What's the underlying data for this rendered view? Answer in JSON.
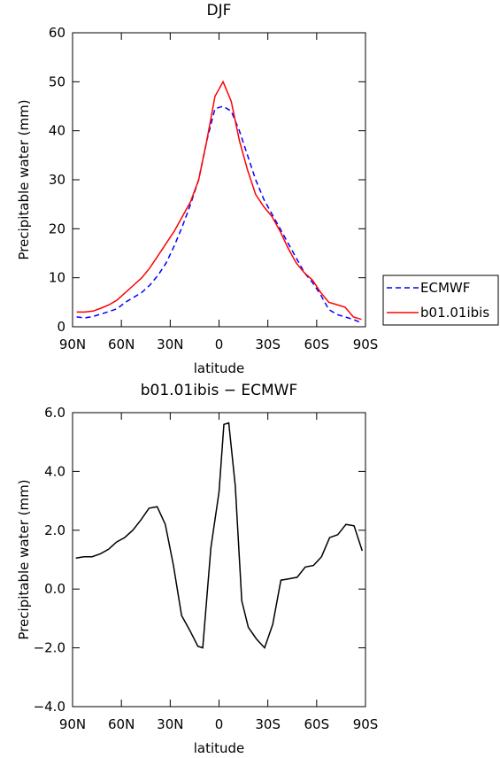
{
  "chart_data": [
    {
      "type": "line",
      "title": "DJF",
      "xlabel": "latitude",
      "ylabel": "Precipitable water (mm)",
      "xlim": [
        90,
        -90
      ],
      "ylim": [
        0,
        60
      ],
      "xticks": [
        {
          "value": 90,
          "label": "90N"
        },
        {
          "value": 60,
          "label": "60N"
        },
        {
          "value": 30,
          "label": "30N"
        },
        0,
        {
          "value": -30,
          "label": "30S"
        },
        {
          "value": -60,
          "label": "60S"
        },
        {
          "value": -90,
          "label": "90S"
        }
      ],
      "yticks": [
        0,
        10,
        20,
        30,
        40,
        50,
        60
      ],
      "legend": "right",
      "x": [
        87.5,
        82.5,
        77.5,
        72.5,
        67.5,
        62.5,
        57.5,
        52.5,
        47.5,
        42.5,
        37.5,
        32.5,
        27.5,
        22.5,
        17.5,
        12.5,
        7.5,
        2.5,
        -2.5,
        -7.5,
        -12.5,
        -17.5,
        -22.5,
        -27.5,
        -32.5,
        -37.5,
        -42.5,
        -47.5,
        -52.5,
        -57.5,
        -62.5,
        -67.5,
        -72.5,
        -77.5,
        -82.5,
        -87.5
      ],
      "series": [
        {
          "name": "ECMWF",
          "color": "#0000ff",
          "dash": true,
          "values": [
            2,
            1.8,
            2.1,
            2.6,
            3.1,
            3.7,
            5,
            6,
            7,
            8.5,
            10.5,
            13,
            16.5,
            20.5,
            25,
            30,
            38,
            44.5,
            45,
            44,
            40,
            35,
            30,
            26,
            23,
            20,
            17,
            14,
            11,
            9,
            6.5,
            3.5,
            2.5,
            2,
            1.5,
            0.8
          ]
        },
        {
          "name": "b01.01ibis",
          "color": "#ff0000",
          "dash": false,
          "values": [
            3,
            3,
            3.2,
            3.8,
            4.5,
            5.5,
            7,
            8.5,
            10,
            12,
            14.5,
            17,
            19.5,
            22.5,
            25.5,
            30,
            38,
            47,
            50,
            46,
            38,
            32,
            27,
            24.5,
            22.5,
            19.5,
            16,
            13,
            11,
            9.5,
            7,
            5,
            4.5,
            4,
            2,
            1.5
          ]
        }
      ]
    },
    {
      "type": "line",
      "title": "b01.01ibis − ECMWF",
      "xlabel": "latitude",
      "ylabel": "Precipitable water (mm)",
      "xlim": [
        90,
        -90
      ],
      "ylim": [
        -4,
        6
      ],
      "xticks": [
        {
          "value": 90,
          "label": "90N"
        },
        {
          "value": 60,
          "label": "60N"
        },
        {
          "value": 30,
          "label": "30N"
        },
        0,
        {
          "value": -30,
          "label": "30S"
        },
        {
          "value": -60,
          "label": "60S"
        },
        {
          "value": -90,
          "label": "90S"
        }
      ],
      "yticks": [
        {
          "value": -4,
          "label": "−4.0"
        },
        {
          "value": -2,
          "label": "−2.0"
        },
        {
          "value": 0,
          "label": "0.0"
        },
        {
          "value": 2,
          "label": "2.0"
        },
        {
          "value": 4,
          "label": "4.0"
        },
        {
          "value": 6,
          "label": "6.0"
        }
      ],
      "x": [
        88,
        83,
        78,
        73,
        68,
        63,
        58,
        53,
        48,
        43,
        38,
        33,
        28,
        23,
        18,
        13,
        10,
        5,
        0,
        -3,
        -6,
        -10,
        -14,
        -18,
        -23,
        -28,
        -33,
        -38,
        -43,
        -48,
        -53,
        -58,
        -63,
        -68,
        -73,
        -78,
        -83,
        -88
      ],
      "series": [
        {
          "color": "#000000",
          "dash": false,
          "values": [
            1.05,
            1.1,
            1.1,
            1.2,
            1.35,
            1.6,
            1.75,
            2.0,
            2.35,
            2.75,
            2.8,
            2.2,
            0.8,
            -0.9,
            -1.4,
            -1.95,
            -2.0,
            1.4,
            3.3,
            5.6,
            5.65,
            3.5,
            -0.4,
            -1.3,
            -1.7,
            -2.0,
            -1.2,
            0.3,
            0.35,
            0.4,
            0.75,
            0.8,
            1.1,
            1.75,
            1.85,
            2.2,
            2.15,
            1.3
          ]
        }
      ]
    }
  ]
}
